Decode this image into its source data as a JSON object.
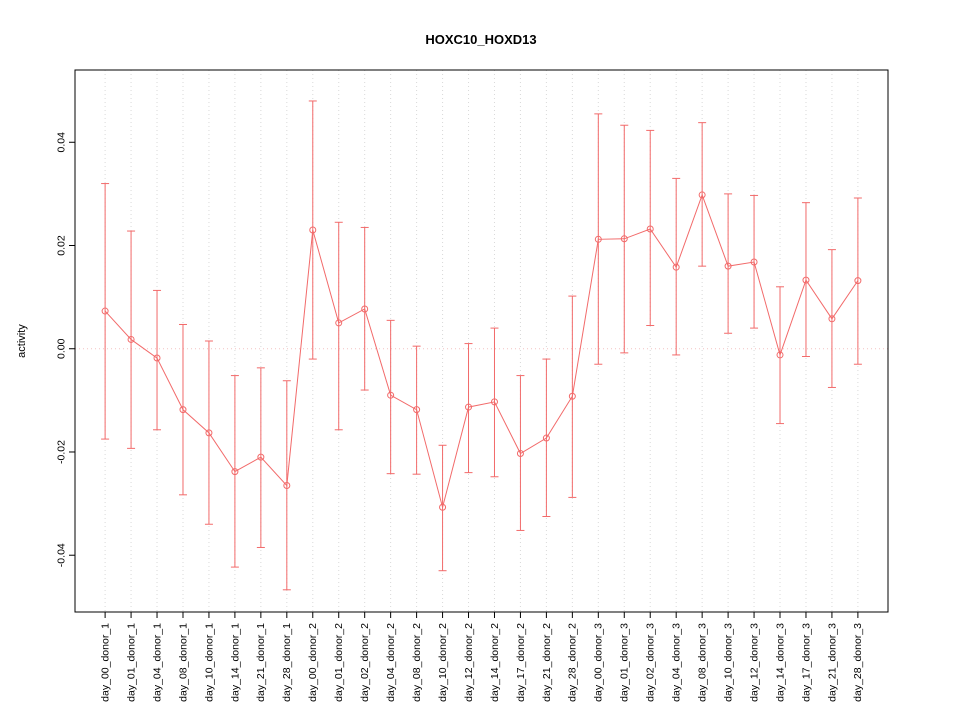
{
  "chart_data": {
    "type": "line",
    "title": "HOXC10_HOXD13",
    "ylabel": "activity",
    "xlabel": "",
    "ylim": [
      -0.051,
      0.054
    ],
    "yticks": [
      -0.04,
      -0.02,
      0.0,
      0.02,
      0.04
    ],
    "ytick_labels": [
      "-0.04",
      "-0.02",
      "0.00",
      "0.02",
      "0.04"
    ],
    "legend": "none",
    "grid": {
      "vertical_dotted": true,
      "zero_line_dotted": true
    },
    "xticklabel_rotation": 90,
    "marker": "open-circle",
    "error_bars": true,
    "colors": {
      "series": "#f26a6a",
      "grid": "#d9d9d9",
      "zero_line": "#f3c2c2",
      "axis": "#000000"
    },
    "categories": [
      "day_00_donor_1",
      "day_01_donor_1",
      "day_04_donor_1",
      "day_08_donor_1",
      "day_10_donor_1",
      "day_14_donor_1",
      "day_21_donor_1",
      "day_28_donor_1",
      "day_00_donor_2",
      "day_01_donor_2",
      "day_02_donor_2",
      "day_04_donor_2",
      "day_08_donor_2",
      "day_10_donor_2",
      "day_12_donor_2",
      "day_14_donor_2",
      "day_17_donor_2",
      "day_21_donor_2",
      "day_28_donor_2",
      "day_00_donor_3",
      "day_01_donor_3",
      "day_02_donor_3",
      "day_04_donor_3",
      "day_08_donor_3",
      "day_10_donor_3",
      "day_12_donor_3",
      "day_14_donor_3",
      "day_17_donor_3",
      "day_21_donor_3",
      "day_28_donor_3"
    ],
    "values": [
      0.0073,
      0.0018,
      -0.0018,
      -0.0118,
      -0.0163,
      -0.0238,
      -0.021,
      -0.0265,
      0.023,
      0.005,
      0.0077,
      -0.009,
      -0.0118,
      -0.0307,
      -0.0113,
      -0.0103,
      -0.0203,
      -0.0173,
      -0.0092,
      0.0212,
      0.0213,
      0.0232,
      0.0158,
      0.0298,
      0.016,
      0.0168,
      -0.0012,
      0.0133,
      0.0058,
      0.0132
    ],
    "lower": [
      -0.0175,
      -0.0193,
      -0.0157,
      -0.0283,
      -0.034,
      -0.0423,
      -0.0385,
      -0.0467,
      -0.002,
      -0.0157,
      -0.008,
      -0.0242,
      -0.0243,
      -0.043,
      -0.024,
      -0.0248,
      -0.0352,
      -0.0325,
      -0.0288,
      -0.003,
      -0.0008,
      0.0045,
      -0.0012,
      0.016,
      0.003,
      0.004,
      -0.0145,
      -0.0015,
      -0.0075,
      -0.003
    ],
    "upper": [
      0.032,
      0.0228,
      0.0113,
      0.0047,
      0.0015,
      -0.0052,
      -0.0037,
      -0.0062,
      0.048,
      0.0245,
      0.0235,
      0.0055,
      0.0005,
      -0.0187,
      0.001,
      0.004,
      -0.0052,
      -0.002,
      0.0102,
      0.0455,
      0.0433,
      0.0423,
      0.033,
      0.0438,
      0.03,
      0.0297,
      0.012,
      0.0283,
      0.0192,
      0.0292
    ]
  }
}
